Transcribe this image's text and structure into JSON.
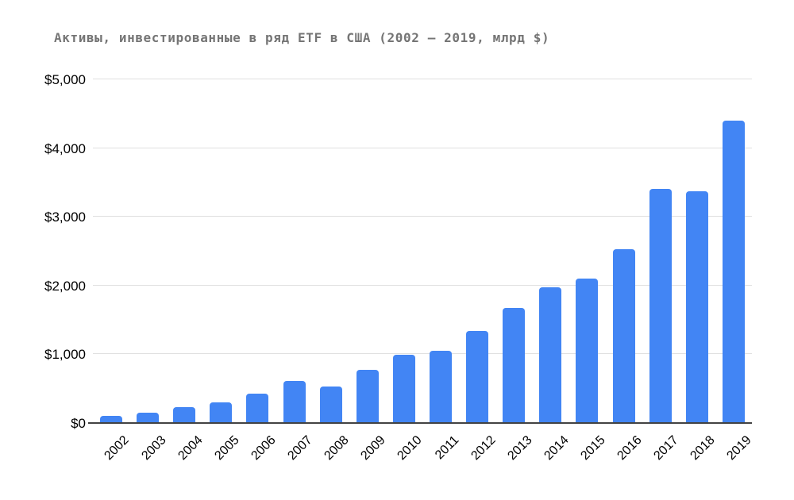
{
  "chart_data": {
    "type": "bar",
    "title": "Активы, инвестированные в ряд ETF в США (2002 — 2019, млрд $)",
    "categories": [
      "2002",
      "2003",
      "2004",
      "2005",
      "2006",
      "2007",
      "2008",
      "2009",
      "2010",
      "2011",
      "2012",
      "2013",
      "2014",
      "2015",
      "2016",
      "2017",
      "2018",
      "2019"
    ],
    "values": [
      102,
      151,
      228,
      301,
      423,
      608,
      531,
      777,
      992,
      1048,
      1337,
      1675,
      1974,
      2100,
      2524,
      3401,
      3371,
      4396
    ],
    "xlabel": "",
    "ylabel": "",
    "ylim": [
      0,
      5000
    ],
    "y_ticks": [
      0,
      1000,
      2000,
      3000,
      4000,
      5000
    ],
    "y_tick_labels": [
      "$0",
      "$1,000",
      "$2,000",
      "$3,000",
      "$4,000",
      "$5,000"
    ],
    "grid": true,
    "legend_position": "none",
    "bar_corner_radius": "rounded-top"
  },
  "colors": {
    "bar": "#4285f4",
    "title": "#757575",
    "tick_label": "#000000",
    "gridline": "#e0e0e0",
    "axis_line": "#424242",
    "background": "#ffffff"
  }
}
